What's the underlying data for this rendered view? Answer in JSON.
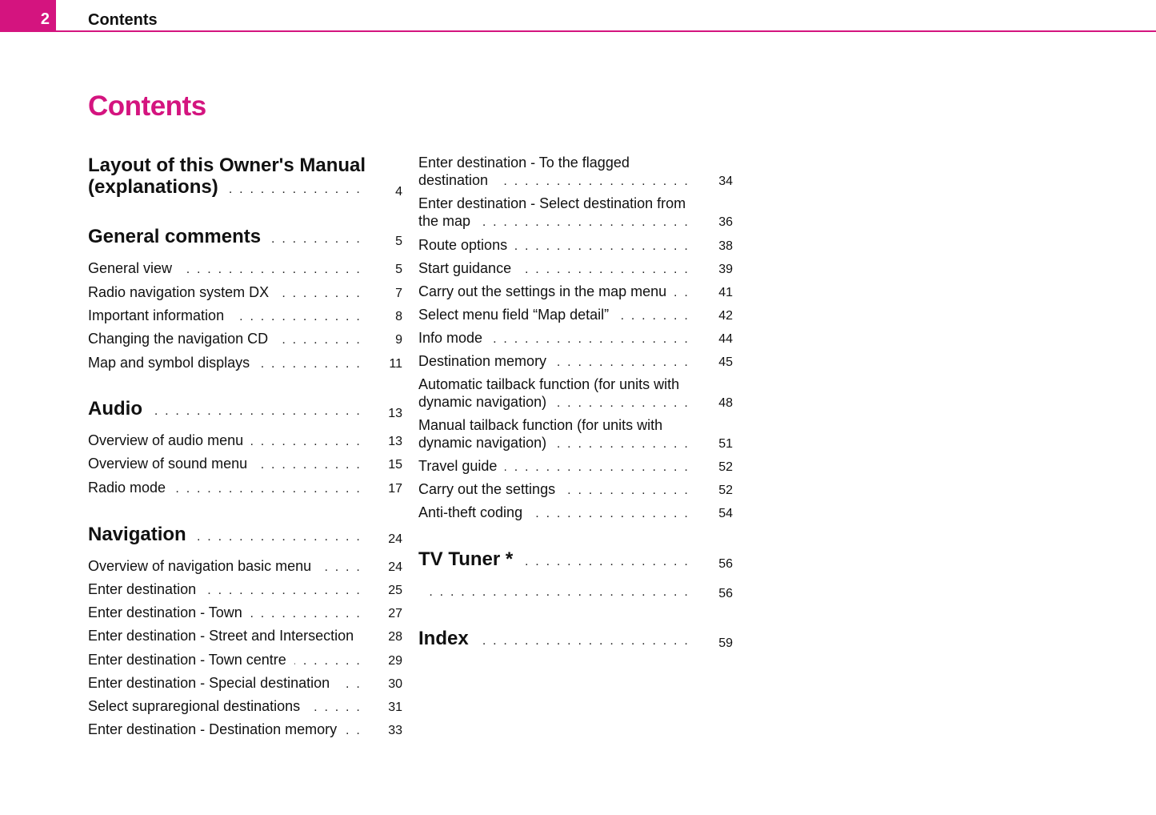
{
  "header": {
    "page_number": "2",
    "running_title": "Contents",
    "accent_color": "#d4147f"
  },
  "title": "Contents",
  "left_column": [
    {
      "level": "section",
      "lines": [
        "Layout of this Owner's Manual",
        "(explanations)"
      ],
      "page": "4"
    },
    {
      "level": "section",
      "lines": [
        "General comments"
      ],
      "page": "5"
    },
    {
      "level": "item",
      "lines": [
        "General view"
      ],
      "page": "5"
    },
    {
      "level": "item",
      "lines": [
        "Radio navigation system DX"
      ],
      "page": "7"
    },
    {
      "level": "item",
      "lines": [
        "Important information"
      ],
      "page": "8"
    },
    {
      "level": "item",
      "lines": [
        "Changing the navigation CD"
      ],
      "page": "9"
    },
    {
      "level": "item",
      "lines": [
        "Map and symbol displays"
      ],
      "page": "11"
    },
    {
      "level": "section",
      "lines": [
        "Audio"
      ],
      "page": "13"
    },
    {
      "level": "item",
      "lines": [
        "Overview of audio menu"
      ],
      "page": "13"
    },
    {
      "level": "item",
      "lines": [
        "Overview of sound menu"
      ],
      "page": "15"
    },
    {
      "level": "item",
      "lines": [
        "Radio mode"
      ],
      "page": "17"
    },
    {
      "level": "section",
      "lines": [
        "Navigation"
      ],
      "page": "24"
    },
    {
      "level": "item",
      "lines": [
        "Overview of navigation basic menu"
      ],
      "page": "24"
    },
    {
      "level": "item",
      "lines": [
        "Enter destination"
      ],
      "page": "25"
    },
    {
      "level": "item",
      "lines": [
        "Enter destination - Town"
      ],
      "page": "27"
    },
    {
      "level": "item",
      "lines": [
        "Enter destination - Street and Intersection"
      ],
      "page": "28"
    },
    {
      "level": "item",
      "lines": [
        "Enter destination - Town centre"
      ],
      "page": "29"
    },
    {
      "level": "item",
      "lines": [
        "Enter destination - Special destination"
      ],
      "page": "30"
    },
    {
      "level": "item",
      "lines": [
        "Select supraregional destinations"
      ],
      "page": "31"
    },
    {
      "level": "item",
      "lines": [
        "Enter destination - Destination memory"
      ],
      "page": "33"
    }
  ],
  "right_column": [
    {
      "level": "item",
      "lines": [
        "Enter destination - To the flagged",
        "destination"
      ],
      "page": "34"
    },
    {
      "level": "item",
      "lines": [
        "Enter destination - Select destination from",
        "the map"
      ],
      "page": "36"
    },
    {
      "level": "item",
      "lines": [
        "Route options"
      ],
      "page": "38"
    },
    {
      "level": "item",
      "lines": [
        "Start guidance"
      ],
      "page": "39"
    },
    {
      "level": "item",
      "lines": [
        "Carry out the settings in the map menu"
      ],
      "page": "41"
    },
    {
      "level": "item",
      "lines": [
        "Select menu field “Map detail”"
      ],
      "page": "42"
    },
    {
      "level": "item",
      "lines": [
        "Info mode"
      ],
      "page": "44"
    },
    {
      "level": "item",
      "lines": [
        "Destination memory"
      ],
      "page": "45"
    },
    {
      "level": "item",
      "lines": [
        "Automatic tailback function (for units with",
        "dynamic navigation)"
      ],
      "page": "48"
    },
    {
      "level": "item",
      "lines": [
        "Manual tailback function (for units with",
        "dynamic navigation)"
      ],
      "page": "51"
    },
    {
      "level": "item",
      "lines": [
        "Travel guide"
      ],
      "page": "52"
    },
    {
      "level": "item",
      "lines": [
        "Carry out the settings"
      ],
      "page": "52"
    },
    {
      "level": "item",
      "lines": [
        "Anti-theft coding"
      ],
      "page": "54"
    },
    {
      "level": "section",
      "lines": [
        "TV Tuner *"
      ],
      "page": "56"
    },
    {
      "level": "item",
      "lines": [
        ""
      ],
      "page": "56"
    },
    {
      "level": "section",
      "lines": [
        "Index"
      ],
      "page": "59"
    }
  ]
}
